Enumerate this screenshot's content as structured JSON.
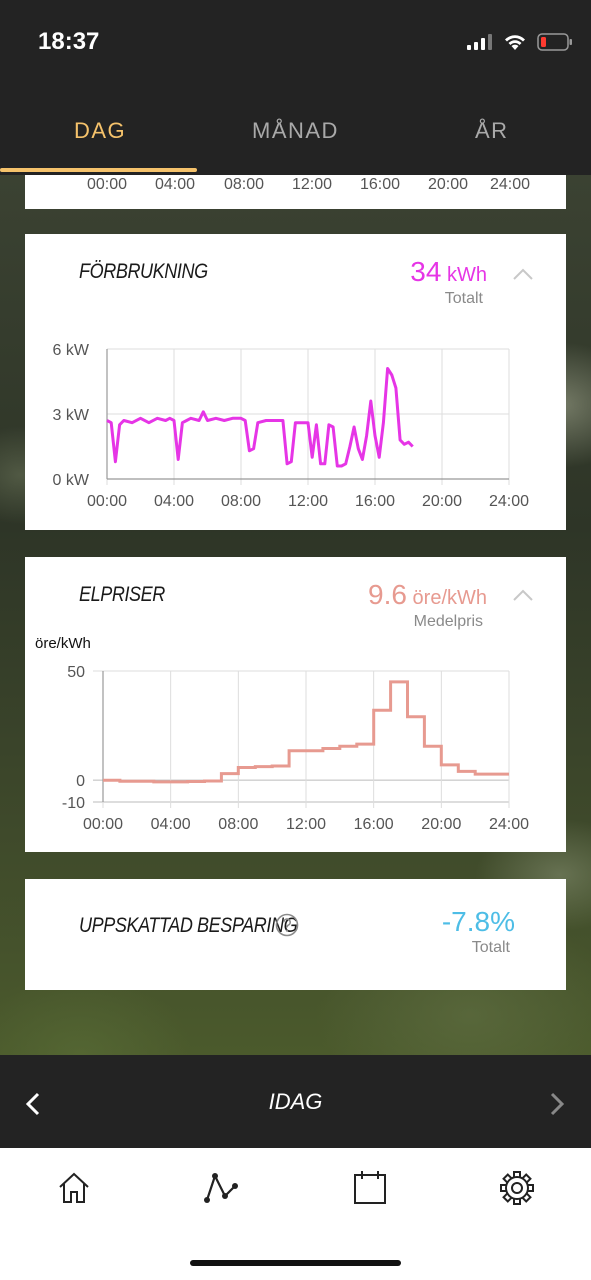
{
  "status_bar": {
    "time": "18:37"
  },
  "tabs": [
    {
      "label": "DAG",
      "active": true
    },
    {
      "label": "MÅNAD",
      "active": false
    },
    {
      "label": "ÅR",
      "active": false
    }
  ],
  "top_card": {
    "x_ticks": [
      "00:00",
      "04:00",
      "08:00",
      "12:00",
      "16:00",
      "20:00",
      "24:00"
    ]
  },
  "consumption": {
    "title": "FÖRBRUKNING",
    "value": "34",
    "unit": "kWh",
    "subtitle": "Totalt",
    "color": "#e635e6"
  },
  "prices": {
    "title": "ELPRISER",
    "value": "9.6",
    "unit": "öre/kWh",
    "subtitle": "Medelpris",
    "color": "#e79a90"
  },
  "savings": {
    "title": "UPPSKATTAD BESPARING",
    "value": "-7.8%",
    "subtitle": "Totalt",
    "color": "#4dbde6",
    "help_icon": "question-circle-icon"
  },
  "date_nav": {
    "label": "IDAG",
    "prev_icon": "chevron-left-icon",
    "next_icon": "chevron-right-icon"
  },
  "tab_bar": {
    "items": [
      {
        "icon": "home-icon"
      },
      {
        "icon": "graph-icon",
        "active": true
      },
      {
        "icon": "calendar-icon"
      },
      {
        "icon": "gear-icon"
      }
    ]
  },
  "chart_data": [
    {
      "type": "line",
      "ylabel": "",
      "y_ticks": [
        "6 kW",
        "3 kW",
        "0 kW"
      ],
      "x_ticks": [
        "00:00",
        "04:00",
        "08:00",
        "12:00",
        "16:00",
        "20:00",
        "24:00"
      ],
      "ylim": [
        0,
        6
      ],
      "xlim": [
        0,
        24
      ],
      "series": [
        {
          "color": "#e635e6",
          "x": [
            0,
            0.25,
            0.5,
            0.75,
            1,
            1.5,
            2,
            2.5,
            3,
            3.5,
            3.75,
            4,
            4.25,
            4.5,
            4.75,
            5,
            5.5,
            5.75,
            6,
            6.5,
            7,
            7.5,
            8,
            8.25,
            8.5,
            8.75,
            9,
            9.5,
            10,
            10.5,
            10.75,
            11,
            11.25,
            11.5,
            12,
            12.25,
            12.5,
            12.75,
            13,
            13.25,
            13.5,
            13.75,
            14,
            14.25,
            14.5,
            14.75,
            15,
            15.25,
            15.5,
            15.75,
            16,
            16.25,
            16.5,
            16.75,
            17,
            17.25,
            17.5,
            17.75,
            18,
            18.25
          ],
          "y": [
            2.7,
            2.6,
            0.8,
            2.5,
            2.7,
            2.6,
            2.8,
            2.6,
            2.8,
            2.7,
            2.8,
            2.7,
            0.9,
            2.6,
            2.7,
            2.8,
            2.7,
            3.1,
            2.7,
            2.8,
            2.7,
            2.8,
            2.8,
            2.7,
            1.3,
            1.4,
            2.6,
            2.7,
            2.7,
            2.7,
            0.7,
            0.8,
            2.6,
            2.6,
            2.6,
            1.0,
            2.5,
            0.7,
            0.7,
            2.5,
            2.4,
            0.6,
            0.6,
            0.7,
            1.5,
            2.4,
            1.4,
            0.9,
            2.0,
            3.6,
            2.0,
            1.0,
            2.6,
            5.1,
            4.8,
            4.2,
            1.8,
            1.6,
            1.7,
            1.5
          ]
        }
      ]
    },
    {
      "type": "line",
      "ylabel": "öre/kWh",
      "y_ticks": [
        "50",
        "0",
        "-10"
      ],
      "x_ticks": [
        "00:00",
        "04:00",
        "08:00",
        "12:00",
        "16:00",
        "20:00",
        "24:00"
      ],
      "ylim": [
        -10,
        50
      ],
      "xlim": [
        0,
        24
      ],
      "step": true,
      "series": [
        {
          "color": "#e79a90",
          "hours": [
            0,
            1,
            2,
            3,
            4,
            5,
            6,
            7,
            8,
            9,
            10,
            11,
            12,
            13,
            14,
            15,
            16,
            17,
            18,
            19,
            20,
            21,
            22,
            23
          ],
          "values": [
            0,
            -0.5,
            -0.5,
            -0.8,
            -0.8,
            -0.6,
            -0.4,
            3,
            5.8,
            6.2,
            6.5,
            13.5,
            13.5,
            14.5,
            15.5,
            16.5,
            32,
            45,
            29,
            15.5,
            7,
            4,
            2.8,
            2.8
          ]
        }
      ]
    }
  ]
}
